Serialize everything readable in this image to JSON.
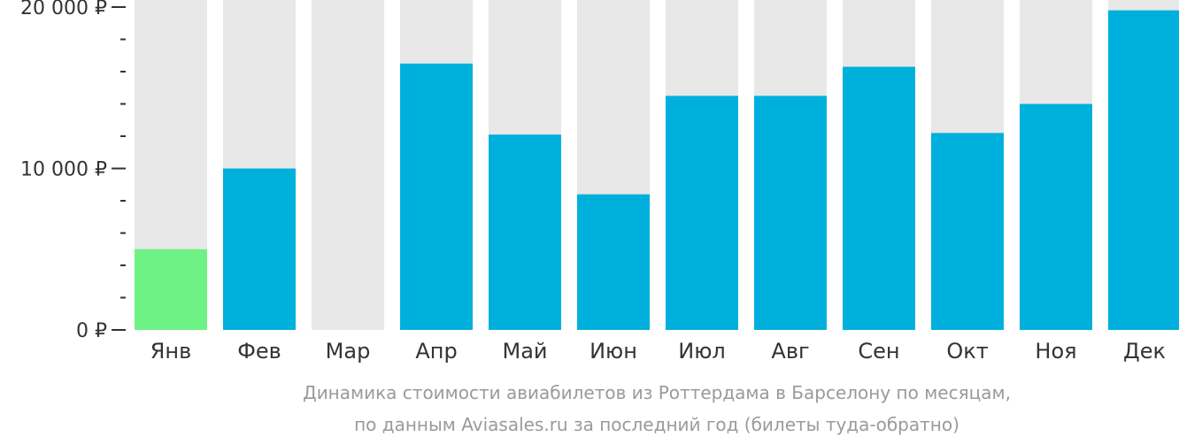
{
  "chart_data": {
    "type": "bar",
    "categories": [
      "Янв",
      "Фев",
      "Мар",
      "Апр",
      "Май",
      "Июн",
      "Июл",
      "Авг",
      "Сен",
      "Окт",
      "Ноя",
      "Дек"
    ],
    "values": [
      5000,
      10000,
      null,
      16500,
      12100,
      8400,
      14500,
      14500,
      16300,
      12200,
      14000,
      19800
    ],
    "ylim": [
      0,
      20000
    ],
    "yticks": [
      {
        "value": 0,
        "label": "0 ₽"
      },
      {
        "value": 10000,
        "label": "10 000 ₽"
      },
      {
        "value": 20000,
        "label": "20 000 ₽"
      }
    ],
    "minor_tick_step": 2000,
    "highlight_index": 0,
    "grid": false,
    "legend": "none",
    "colors": {
      "bar": "#00b0dc",
      "bar_cheapest": "#6ef286",
      "bar_track": "#e8e8e8",
      "axis": "#333333",
      "caption": "#9a9a9a"
    }
  },
  "caption": {
    "line1": "Динамика стоимости авиабилетов из Роттердама в Барселону по месяцам,",
    "line2": "по данным Aviasales.ru за последний год (билеты туда-обратно)"
  }
}
